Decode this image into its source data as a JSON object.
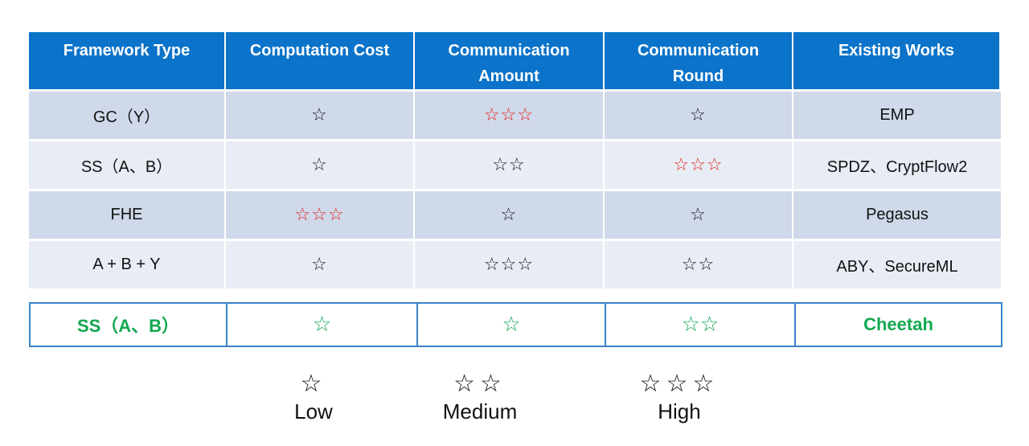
{
  "colors": {
    "header_bg": "#0b73c9",
    "high_cost_star": "#e3231b",
    "highlight": "#12a850",
    "row_dark": "#cfd9ea",
    "row_light": "#e8edf5"
  },
  "headers": [
    "Framework Type",
    "Computation Cost",
    "Communication\nAmount",
    "Communication\nRound",
    "Existing Works"
  ],
  "rows": [
    {
      "type": "GC（Y）",
      "computation": "☆",
      "computation_color": "black",
      "amount": "☆☆☆",
      "amount_color": "red",
      "round": "☆",
      "round_color": "black",
      "works": "EMP"
    },
    {
      "type": "SS（A、B）",
      "computation": "☆",
      "computation_color": "black",
      "amount": "☆☆",
      "amount_color": "black",
      "round": "☆☆☆",
      "round_color": "red",
      "works": "SPDZ、CryptFlow2"
    },
    {
      "type": "FHE",
      "computation": "☆☆☆",
      "computation_color": "red",
      "amount": "☆",
      "amount_color": "black",
      "round": "☆",
      "round_color": "black",
      "works": "Pegasus"
    },
    {
      "type": "A + B + Y",
      "computation": "☆",
      "computation_color": "black",
      "amount": "☆☆☆",
      "amount_color": "black",
      "round": "☆☆",
      "round_color": "black",
      "works": "ABY、SecureML"
    }
  ],
  "highlight_row": {
    "type": "SS（A、B）",
    "computation": "☆",
    "amount": "☆",
    "round": "☆☆",
    "works": "Cheetah"
  },
  "legend": [
    {
      "stars": "☆",
      "label": "Low"
    },
    {
      "stars": "☆☆",
      "label": "Medium"
    },
    {
      "stars": "☆☆☆",
      "label": "High"
    }
  ]
}
